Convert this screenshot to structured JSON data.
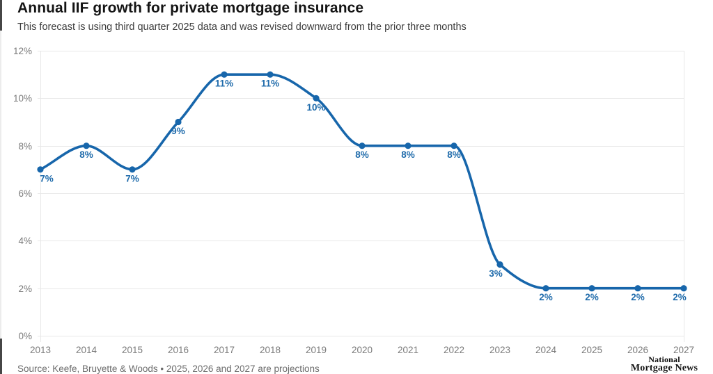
{
  "header": {
    "title": "Annual IIF growth for private mortgage insurance",
    "subtitle": "This forecast is using third quarter 2025 data and was revised downward from the prior three months"
  },
  "footer": {
    "source": "Source: Keefe, Bruyette & Woods • 2025, 2026 and 2027 are projections",
    "logo_line1": "National",
    "logo_line2": "Mortgage News"
  },
  "chart_data": {
    "type": "line",
    "title": "Annual IIF growth for private mortgage insurance",
    "x": [
      2013,
      2014,
      2015,
      2016,
      2017,
      2018,
      2019,
      2020,
      2021,
      2022,
      2023,
      2024,
      2025,
      2026,
      2027
    ],
    "values": [
      7,
      8,
      7,
      9,
      11,
      11,
      10,
      8,
      8,
      8,
      3,
      2,
      2,
      2,
      2
    ],
    "point_labels": [
      "7%",
      "8%",
      "7%",
      "9%",
      "11%",
      "11%",
      "10%",
      "8%",
      "8%",
      "8%",
      "3%",
      "2%",
      "2%",
      "2%",
      "2%"
    ],
    "xlabel": "",
    "ylabel": "",
    "ylim": [
      0,
      12
    ],
    "yticks": [
      {
        "v": 0,
        "label": "0%"
      },
      {
        "v": 2,
        "label": "2%"
      },
      {
        "v": 4,
        "label": "4%"
      },
      {
        "v": 6,
        "label": "6%"
      },
      {
        "v": 8,
        "label": "8%"
      },
      {
        "v": 10,
        "label": "10%"
      },
      {
        "v": 12,
        "label": "12%"
      }
    ],
    "grid": "horizontal",
    "legend": "none",
    "smooth": true,
    "line_color": "#1766ab",
    "marker_color": "#1766ab",
    "label_color": "#1f6bab",
    "axis_text_color": "#7a7a7a",
    "grid_color": "#e8e8e8"
  }
}
